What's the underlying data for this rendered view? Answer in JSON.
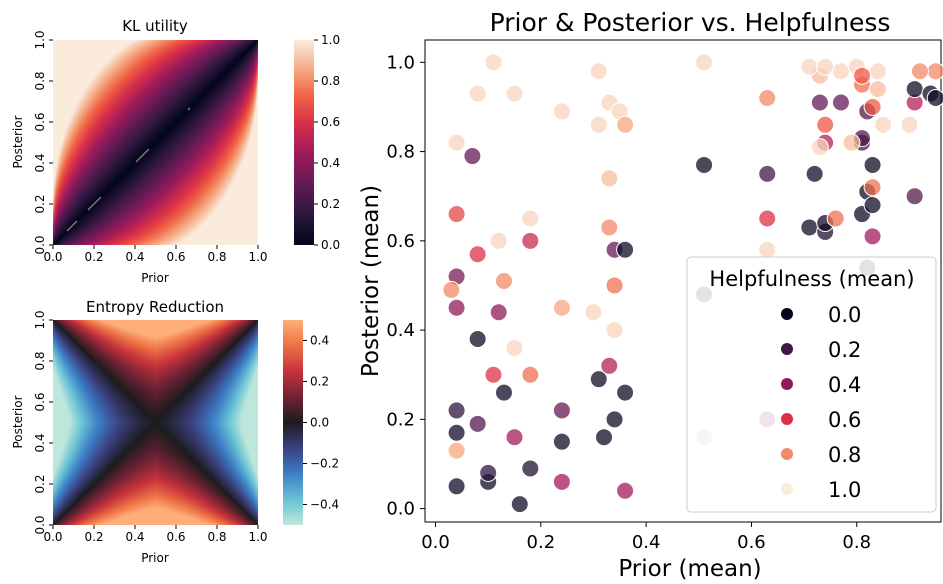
{
  "chart_data": [
    {
      "type": "heatmap",
      "title": "KL utility",
      "xlabel": "Prior",
      "ylabel": "Posterior",
      "xlim": [
        0,
        1
      ],
      "ylim": [
        0,
        1
      ],
      "xticks": [
        "0.0",
        "0.2",
        "0.4",
        "0.6",
        "0.8",
        "1.0"
      ],
      "yticks": [
        "0.0",
        "0.2",
        "0.4",
        "0.6",
        "0.8",
        "1.0"
      ],
      "colorbar": {
        "min": 0,
        "max": 1,
        "ticks": [
          "0.0",
          "0.2",
          "0.4",
          "0.6",
          "0.8",
          "1.0"
        ],
        "colormap": "rocket"
      },
      "grid": false
    },
    {
      "type": "heatmap",
      "title": "Entropy Reduction",
      "xlabel": "Prior",
      "ylabel": "Posterior",
      "xlim": [
        0,
        1
      ],
      "ylim": [
        0,
        1
      ],
      "xticks": [
        "0.0",
        "0.2",
        "0.4",
        "0.6",
        "0.8",
        "1.0"
      ],
      "yticks": [
        "0.0",
        "0.2",
        "0.4",
        "0.6",
        "0.8",
        "1.0"
      ],
      "colorbar": {
        "min": -0.5,
        "max": 0.5,
        "ticks": [
          "−0.4",
          "−0.2",
          "0.0",
          "0.2",
          "0.4"
        ],
        "colormap": "icefire"
      },
      "grid": false
    },
    {
      "type": "scatter",
      "title": "Prior & Posterior vs. Helpfulness",
      "xlabel": "Prior (mean)",
      "ylabel": "Posterior (mean)",
      "xlim": [
        -0.02,
        0.96
      ],
      "ylim": [
        -0.03,
        1.05
      ],
      "xticks": [
        "0.0",
        "0.2",
        "0.4",
        "0.6",
        "0.8"
      ],
      "yticks": [
        "0.0",
        "0.2",
        "0.4",
        "0.6",
        "0.8",
        "1.0"
      ],
      "legend": {
        "title": "Helpfulness (mean)",
        "position": "center-right",
        "entries": [
          "0.0",
          "0.2",
          "0.4",
          "0.6",
          "0.8",
          "1.0"
        ]
      },
      "grid": false,
      "points": [
        [
          0.04,
          0.05,
          0.05
        ],
        [
          0.1,
          0.06,
          0.05
        ],
        [
          0.1,
          0.08,
          0.15
        ],
        [
          0.16,
          0.01,
          0.05
        ],
        [
          0.18,
          0.09,
          0.1
        ],
        [
          0.04,
          0.17,
          0.05
        ],
        [
          0.04,
          0.22,
          0.15
        ],
        [
          0.08,
          0.19,
          0.25
        ],
        [
          0.08,
          0.38,
          0.05
        ],
        [
          0.13,
          0.26,
          0.05
        ],
        [
          0.15,
          0.16,
          0.45
        ],
        [
          0.24,
          0.15,
          0.05
        ],
        [
          0.24,
          0.22,
          0.3
        ],
        [
          0.24,
          0.06,
          0.45
        ],
        [
          0.32,
          0.16,
          0.05
        ],
        [
          0.34,
          0.2,
          0.05
        ],
        [
          0.36,
          0.26,
          0.05
        ],
        [
          0.31,
          0.29,
          0.05
        ],
        [
          0.33,
          0.32,
          0.5
        ],
        [
          0.36,
          0.04,
          0.45
        ],
        [
          0.51,
          0.16,
          0.3
        ],
        [
          0.51,
          0.48,
          0.1
        ],
        [
          0.63,
          0.2,
          0.35
        ],
        [
          0.51,
          0.77,
          0.05
        ],
        [
          0.72,
          0.75,
          0.05
        ],
        [
          0.63,
          0.75,
          0.2
        ],
        [
          0.63,
          0.65,
          0.6
        ],
        [
          0.71,
          0.63,
          0.05
        ],
        [
          0.74,
          0.62,
          0.1
        ],
        [
          0.74,
          0.64,
          0.05
        ],
        [
          0.76,
          0.65,
          0.75
        ],
        [
          0.81,
          0.66,
          0.05
        ],
        [
          0.82,
          0.71,
          0.05
        ],
        [
          0.83,
          0.77,
          0.05
        ],
        [
          0.83,
          0.68,
          0.05
        ],
        [
          0.82,
          0.54,
          0.05
        ],
        [
          0.83,
          0.61,
          0.45
        ],
        [
          0.83,
          0.72,
          0.75
        ],
        [
          0.81,
          0.82,
          0.2
        ],
        [
          0.81,
          0.83,
          0.25
        ],
        [
          0.82,
          0.89,
          0.25
        ],
        [
          0.73,
          0.91,
          0.3
        ],
        [
          0.77,
          0.91,
          0.3
        ],
        [
          0.74,
          0.82,
          0.5
        ],
        [
          0.79,
          0.82,
          0.9
        ],
        [
          0.91,
          0.7,
          0.25
        ],
        [
          0.91,
          0.91,
          0.5
        ],
        [
          0.91,
          0.94,
          0.05
        ],
        [
          0.94,
          0.93,
          0.05
        ],
        [
          0.95,
          0.92,
          0.05
        ],
        [
          0.95,
          0.98,
          0.8
        ],
        [
          0.92,
          0.98,
          0.8
        ],
        [
          0.85,
          0.86,
          0.95
        ],
        [
          0.74,
          0.86,
          0.7
        ],
        [
          0.83,
          0.9,
          0.7
        ],
        [
          0.81,
          0.95,
          0.75
        ],
        [
          0.73,
          0.97,
          0.9
        ],
        [
          0.77,
          0.98,
          0.95
        ],
        [
          0.84,
          0.98,
          0.95
        ],
        [
          0.8,
          0.99,
          0.95
        ],
        [
          0.71,
          0.99,
          0.95
        ],
        [
          0.74,
          0.99,
          0.95
        ],
        [
          0.81,
          0.97,
          0.7
        ],
        [
          0.84,
          0.94,
          0.9
        ],
        [
          0.9,
          0.86,
          0.95
        ],
        [
          0.63,
          0.92,
          0.8
        ],
        [
          0.73,
          0.81,
          0.95
        ],
        [
          0.63,
          0.58,
          0.95
        ],
        [
          0.51,
          1.0,
          0.95
        ],
        [
          0.31,
          0.98,
          0.95
        ],
        [
          0.33,
          0.91,
          0.95
        ],
        [
          0.35,
          0.89,
          0.95
        ],
        [
          0.24,
          0.89,
          0.95
        ],
        [
          0.36,
          0.86,
          0.85
        ],
        [
          0.31,
          0.86,
          0.95
        ],
        [
          0.11,
          1.0,
          0.95
        ],
        [
          0.15,
          0.93,
          0.95
        ],
        [
          0.08,
          0.93,
          0.95
        ],
        [
          0.04,
          0.82,
          0.95
        ],
        [
          0.07,
          0.79,
          0.3
        ],
        [
          0.04,
          0.66,
          0.65
        ],
        [
          0.08,
          0.57,
          0.6
        ],
        [
          0.12,
          0.6,
          0.95
        ],
        [
          0.18,
          0.65,
          0.95
        ],
        [
          0.18,
          0.6,
          0.55
        ],
        [
          0.04,
          0.52,
          0.35
        ],
        [
          0.03,
          0.49,
          0.8
        ],
        [
          0.04,
          0.45,
          0.4
        ],
        [
          0.13,
          0.51,
          0.8
        ],
        [
          0.12,
          0.44,
          0.4
        ],
        [
          0.15,
          0.36,
          0.95
        ],
        [
          0.11,
          0.3,
          0.6
        ],
        [
          0.18,
          0.3,
          0.75
        ],
        [
          0.04,
          0.13,
          0.85
        ],
        [
          0.24,
          0.45,
          0.85
        ],
        [
          0.3,
          0.44,
          0.95
        ],
        [
          0.34,
          0.4,
          0.95
        ],
        [
          0.33,
          0.63,
          0.8
        ],
        [
          0.34,
          0.58,
          0.3
        ],
        [
          0.36,
          0.58,
          0.05
        ],
        [
          0.34,
          0.5,
          0.75
        ],
        [
          0.33,
          0.74,
          0.9
        ],
        [
          0.51,
          0.16,
          0.95
        ]
      ]
    }
  ]
}
